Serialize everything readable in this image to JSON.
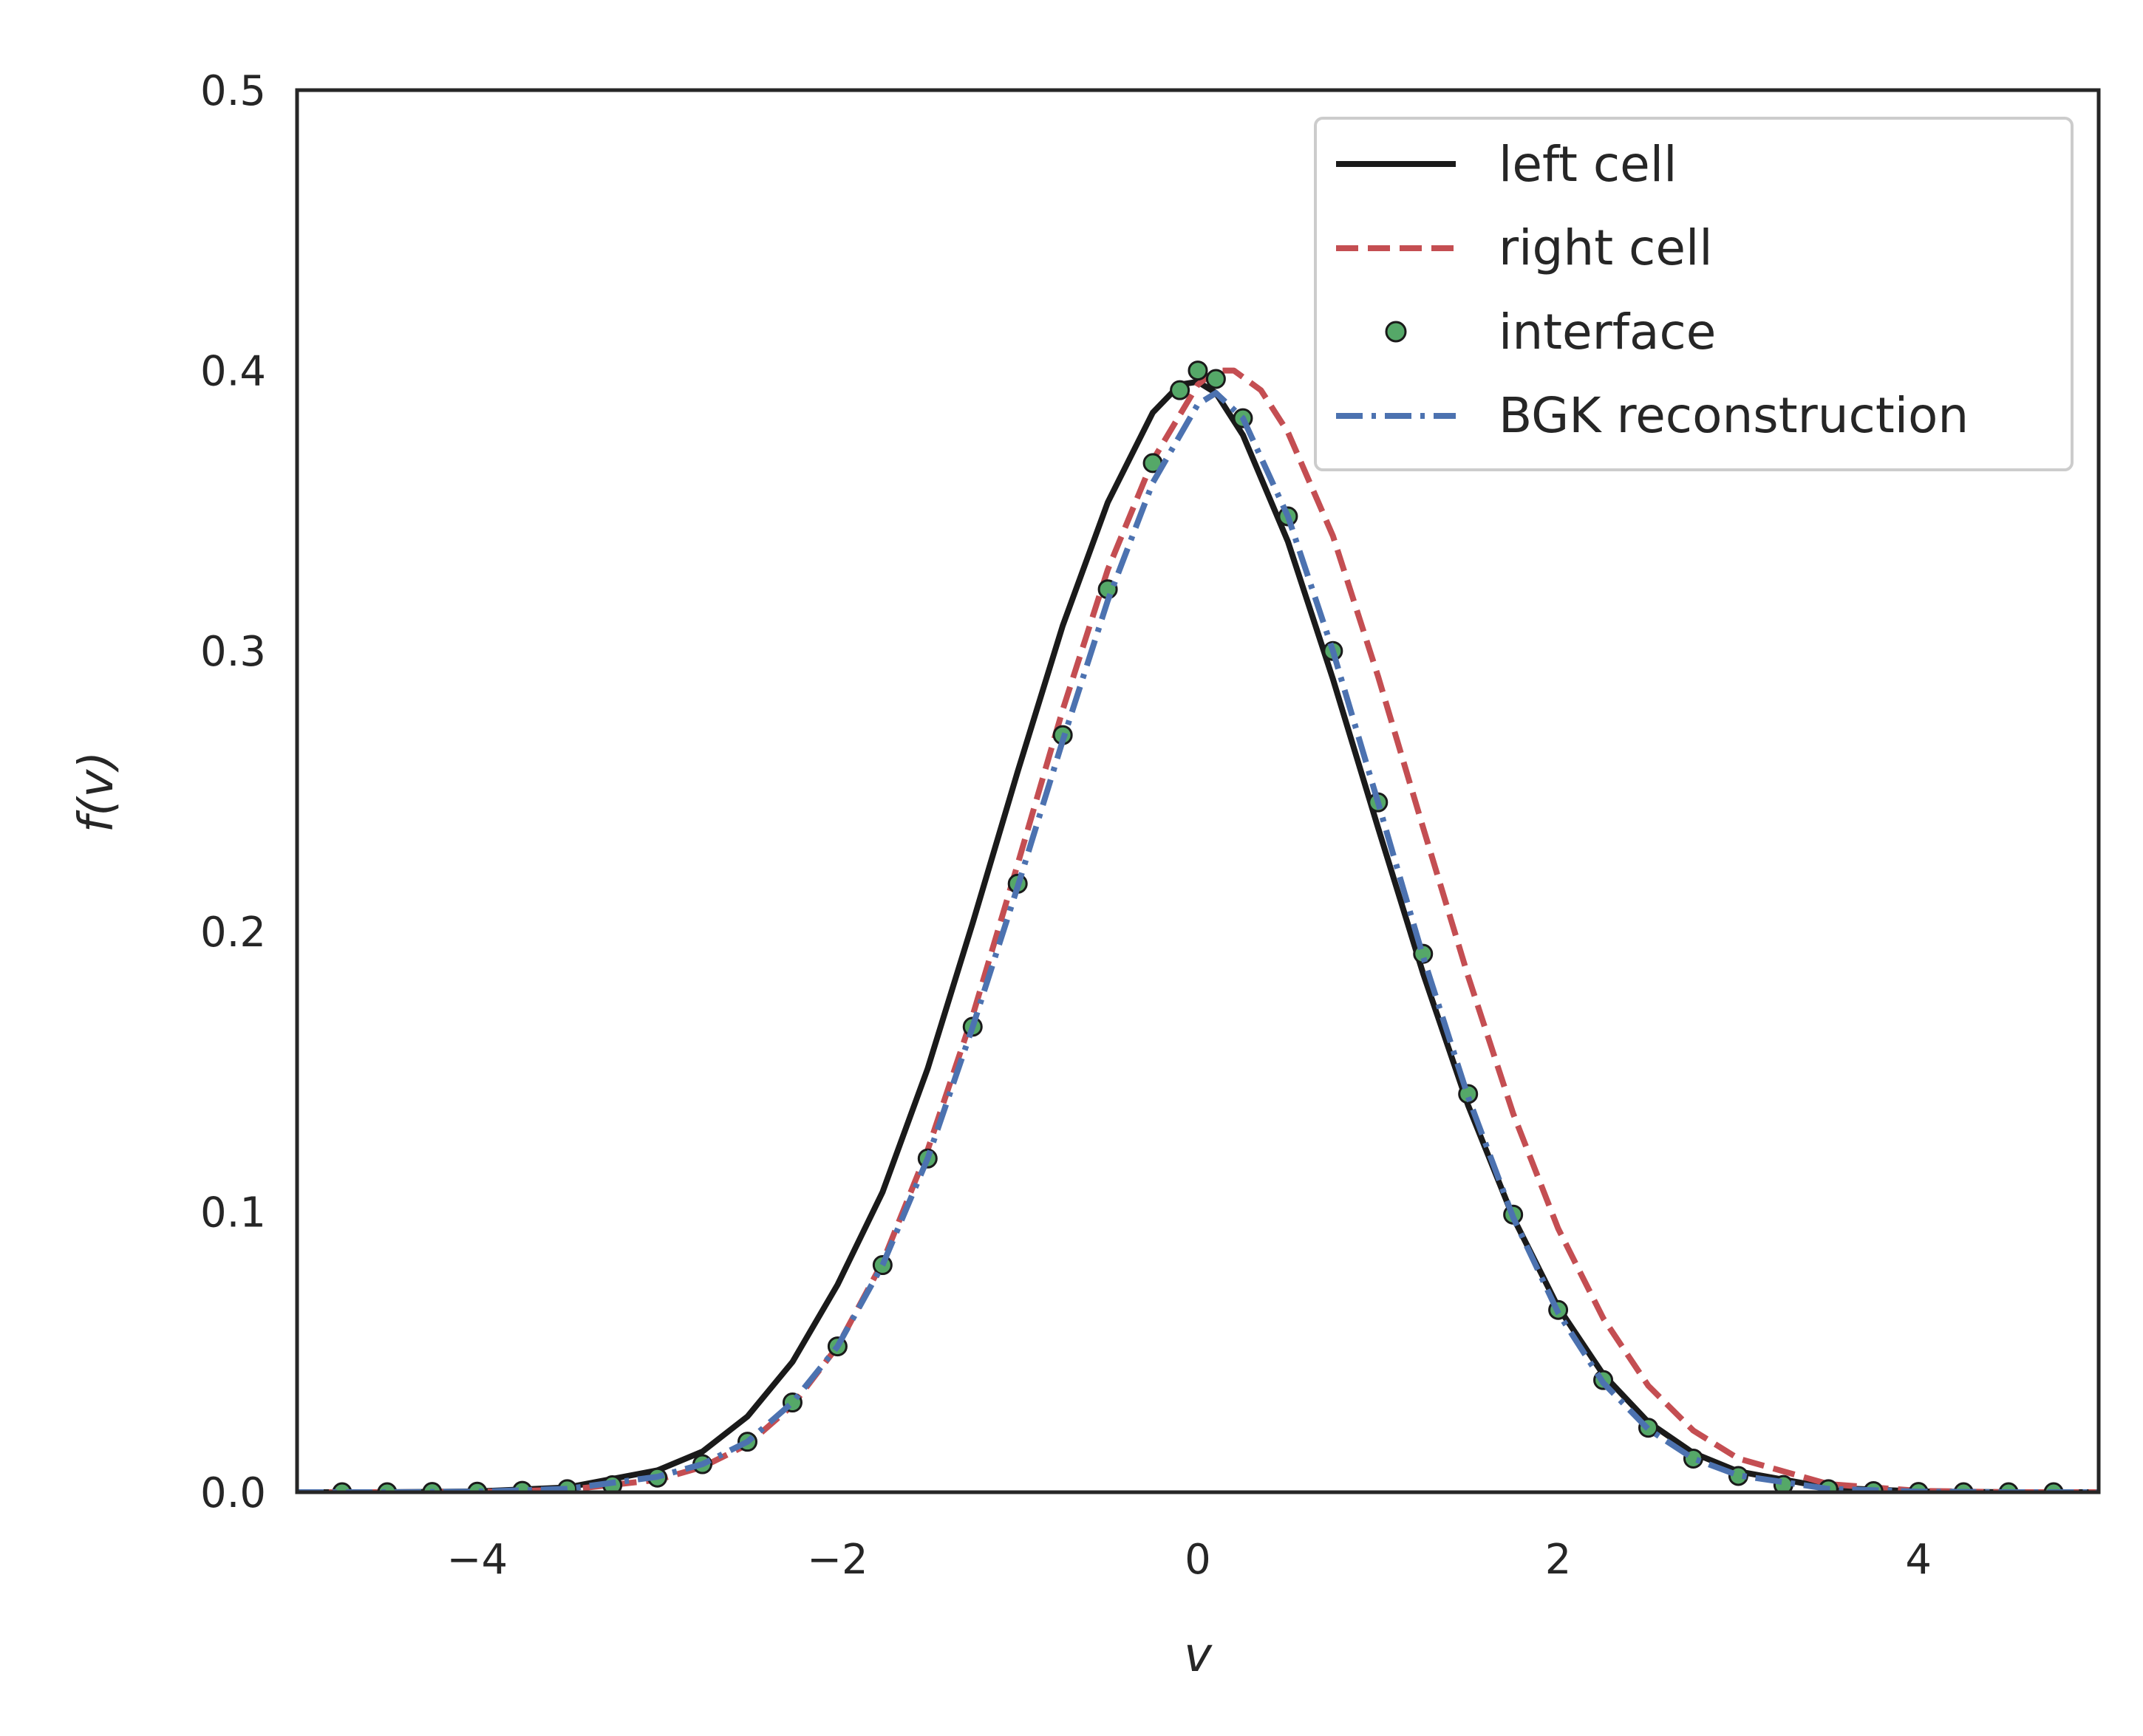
{
  "chart_data": {
    "type": "line",
    "xlabel": "v",
    "ylabel": "f(v)",
    "xlim": [
      -5,
      5
    ],
    "ylim": [
      0,
      0.5
    ],
    "xticks": [
      -4,
      -2,
      0,
      2,
      4
    ],
    "xtick_labels": [
      "−4",
      "−2",
      "0",
      "2",
      "4"
    ],
    "yticks": [
      0.0,
      0.1,
      0.2,
      0.3,
      0.4,
      0.5
    ],
    "ytick_labels": [
      "0.0",
      "0.1",
      "0.2",
      "0.3",
      "0.4",
      "0.5"
    ],
    "grid": false,
    "legend_position": "top-right",
    "series": [
      {
        "name": "left cell",
        "style": "solid",
        "color": "#1a1a1a",
        "x": [
          -5.0,
          -4.5,
          -4.0,
          -3.5,
          -3.0,
          -2.75,
          -2.5,
          -2.25,
          -2.0,
          -1.75,
          -1.5,
          -1.25,
          -1.0,
          -0.75,
          -0.5,
          -0.25,
          -0.1,
          0.0,
          0.1,
          0.25,
          0.5,
          0.75,
          1.0,
          1.25,
          1.5,
          1.75,
          2.0,
          2.25,
          2.5,
          2.75,
          3.0,
          3.5,
          4.0,
          4.5,
          5.0
        ],
        "y": [
          0.0,
          0.0,
          0.0003,
          0.0017,
          0.0078,
          0.0145,
          0.027,
          0.0465,
          0.074,
          0.107,
          0.151,
          0.203,
          0.257,
          0.309,
          0.353,
          0.385,
          0.395,
          0.396,
          0.392,
          0.377,
          0.339,
          0.29,
          0.237,
          0.185,
          0.138,
          0.098,
          0.066,
          0.042,
          0.025,
          0.014,
          0.0074,
          0.0016,
          0.0003,
          0.0,
          0.0
        ]
      },
      {
        "name": "right cell",
        "style": "dashed",
        "color": "#c44e52",
        "x": [
          -5.0,
          -4.5,
          -4.0,
          -3.5,
          -3.0,
          -2.75,
          -2.5,
          -2.25,
          -2.0,
          -1.75,
          -1.5,
          -1.25,
          -1.0,
          -0.75,
          -0.5,
          -0.25,
          0.0,
          0.1,
          0.2,
          0.35,
          0.5,
          0.75,
          1.0,
          1.25,
          1.5,
          1.75,
          2.0,
          2.25,
          2.5,
          2.75,
          3.0,
          3.5,
          4.0,
          4.5,
          5.0
        ],
        "y": [
          0.0,
          0.0,
          0.0001,
          0.0009,
          0.0044,
          0.009,
          0.017,
          0.031,
          0.052,
          0.082,
          0.122,
          0.17,
          0.224,
          0.279,
          0.329,
          0.368,
          0.395,
          0.4,
          0.4,
          0.393,
          0.378,
          0.341,
          0.291,
          0.237,
          0.184,
          0.135,
          0.094,
          0.062,
          0.038,
          0.022,
          0.012,
          0.0029,
          0.0005,
          0.0,
          0.0
        ]
      },
      {
        "name": "interface",
        "style": "markers",
        "color": "#55a868",
        "x": [
          -4.75,
          -4.5,
          -4.25,
          -4.0,
          -3.75,
          -3.5,
          -3.25,
          -3.0,
          -2.75,
          -2.5,
          -2.25,
          -2.0,
          -1.75,
          -1.5,
          -1.25,
          -1.0,
          -0.75,
          -0.5,
          -0.25,
          -0.1,
          0.0,
          0.1,
          0.25,
          0.5,
          0.75,
          1.0,
          1.25,
          1.5,
          1.75,
          2.0,
          2.25,
          2.5,
          2.75,
          3.0,
          3.25,
          3.5,
          3.75,
          4.0,
          4.25,
          4.5,
          4.75
        ],
        "y": [
          0.0,
          0.0,
          0.0001,
          0.0002,
          0.0005,
          0.0011,
          0.0025,
          0.0052,
          0.01,
          0.018,
          0.032,
          0.052,
          0.081,
          0.119,
          0.166,
          0.217,
          0.27,
          0.322,
          0.367,
          0.393,
          0.4,
          0.397,
          0.383,
          0.348,
          0.3,
          0.246,
          0.192,
          0.142,
          0.099,
          0.065,
          0.04,
          0.023,
          0.012,
          0.0058,
          0.0026,
          0.0011,
          0.0004,
          0.0001,
          0.0,
          0.0,
          0.0
        ]
      },
      {
        "name": "BGK reconstruction",
        "style": "dashdot",
        "color": "#4c72b0",
        "x": [
          -5.0,
          -4.5,
          -4.0,
          -3.5,
          -3.0,
          -2.75,
          -2.5,
          -2.25,
          -2.0,
          -1.75,
          -1.5,
          -1.25,
          -1.0,
          -0.75,
          -0.5,
          -0.25,
          0.0,
          0.1,
          0.25,
          0.5,
          0.75,
          1.0,
          1.25,
          1.5,
          1.75,
          2.0,
          2.25,
          2.5,
          2.75,
          3.0,
          3.5,
          4.0,
          4.5,
          5.0
        ],
        "y": [
          0.0,
          0.0,
          0.0002,
          0.0012,
          0.0055,
          0.01,
          0.018,
          0.032,
          0.052,
          0.081,
          0.119,
          0.166,
          0.216,
          0.268,
          0.318,
          0.36,
          0.388,
          0.392,
          0.383,
          0.348,
          0.3,
          0.246,
          0.191,
          0.141,
          0.098,
          0.064,
          0.039,
          0.0225,
          0.012,
          0.006,
          0.0012,
          0.0002,
          0.0,
          0.0
        ]
      }
    ]
  }
}
